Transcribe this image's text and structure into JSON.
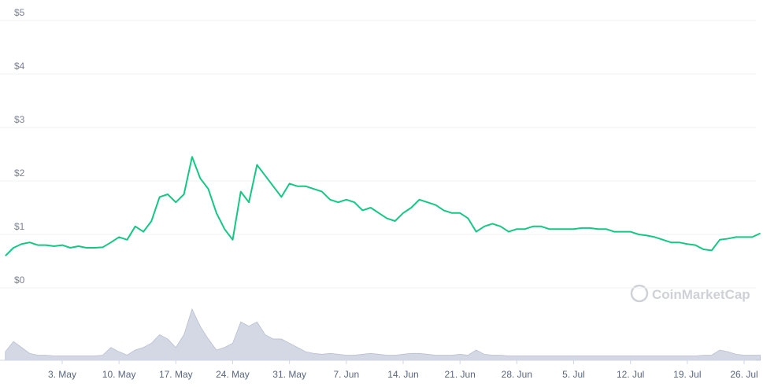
{
  "chart_data": {
    "type": "line",
    "watermark": "CoinMarketCap",
    "categories": [
      null,
      null,
      null,
      null,
      null,
      null,
      null,
      "3. May",
      null,
      null,
      null,
      null,
      null,
      null,
      "10. May",
      null,
      null,
      null,
      null,
      null,
      null,
      "17. May",
      null,
      null,
      null,
      null,
      null,
      null,
      "24. May",
      null,
      null,
      null,
      null,
      null,
      null,
      "31. May",
      null,
      null,
      null,
      null,
      null,
      null,
      "7. Jun",
      null,
      null,
      null,
      null,
      null,
      null,
      "14. Jun",
      null,
      null,
      null,
      null,
      null,
      null,
      "21. Jun",
      null,
      null,
      null,
      null,
      null,
      null,
      "28. Jun",
      null,
      null,
      null,
      null,
      null,
      null,
      "5. Jul",
      null,
      null,
      null,
      null,
      null,
      null,
      "12. Jul",
      null,
      null,
      null,
      null,
      null,
      null,
      "19. Jul",
      null,
      null,
      null,
      null,
      null,
      null,
      "26. Jul",
      null,
      null
    ],
    "values": [
      0.6,
      0.75,
      0.82,
      0.85,
      0.8,
      0.8,
      0.78,
      0.8,
      0.75,
      0.78,
      0.75,
      0.75,
      0.76,
      0.85,
      0.95,
      0.9,
      1.15,
      1.05,
      1.25,
      1.7,
      1.75,
      1.6,
      1.75,
      2.45,
      2.05,
      1.85,
      1.4,
      1.1,
      0.9,
      1.8,
      1.6,
      2.3,
      2.1,
      1.9,
      1.7,
      1.95,
      1.9,
      1.9,
      1.85,
      1.8,
      1.65,
      1.6,
      1.65,
      1.6,
      1.45,
      1.5,
      1.4,
      1.3,
      1.25,
      1.4,
      1.5,
      1.65,
      1.6,
      1.55,
      1.45,
      1.4,
      1.4,
      1.3,
      1.05,
      1.15,
      1.2,
      1.15,
      1.05,
      1.1,
      1.1,
      1.15,
      1.15,
      1.1,
      1.1,
      1.1,
      1.1,
      1.12,
      1.12,
      1.1,
      1.1,
      1.05,
      1.05,
      1.05,
      1.0,
      0.98,
      0.95,
      0.9,
      0.85,
      0.85,
      0.82,
      0.8,
      0.72,
      0.7,
      0.9,
      0.92,
      0.95,
      0.95,
      0.95,
      1.02
    ],
    "color": "#16c784",
    "volume": [
      10,
      22,
      15,
      8,
      6,
      6,
      5,
      5,
      5,
      5,
      5,
      5,
      6,
      15,
      10,
      6,
      12,
      15,
      20,
      30,
      25,
      15,
      30,
      60,
      40,
      25,
      12,
      15,
      20,
      45,
      40,
      45,
      30,
      25,
      25,
      20,
      15,
      10,
      8,
      7,
      8,
      7,
      6,
      6,
      7,
      8,
      7,
      6,
      6,
      7,
      8,
      8,
      7,
      6,
      6,
      6,
      7,
      6,
      12,
      7,
      6,
      6,
      5,
      5,
      5,
      5,
      5,
      5,
      5,
      5,
      5,
      5,
      5,
      5,
      5,
      5,
      5,
      5,
      5,
      5,
      5,
      5,
      5,
      5,
      5,
      5,
      6,
      6,
      12,
      10,
      7,
      6,
      6,
      6
    ],
    "volume_color": "#d3d8e4",
    "ylim": [
      0,
      5
    ],
    "yticks": [
      {
        "value": 0,
        "label": "$0"
      },
      {
        "value": 1,
        "label": "$1"
      },
      {
        "value": 2,
        "label": "$2"
      },
      {
        "value": 3,
        "label": "$3"
      },
      {
        "value": 4,
        "label": "$4"
      },
      {
        "value": 5,
        "label": "$5"
      }
    ],
    "grid": true
  }
}
